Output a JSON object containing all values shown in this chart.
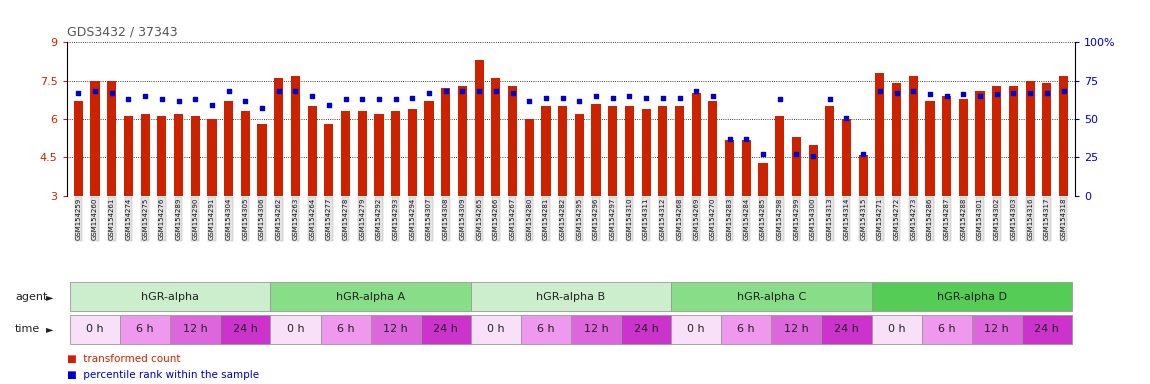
{
  "title": "GDS3432 / 37343",
  "ylim_left": [
    3.0,
    9.0
  ],
  "ylim_right": [
    0,
    100
  ],
  "yticks_left": [
    3.0,
    4.5,
    6.0,
    7.5,
    9.0
  ],
  "ytick_labels_left": [
    "3",
    "4.5",
    "6",
    "7.5",
    "9"
  ],
  "yticks_right": [
    0,
    25,
    50,
    75,
    100
  ],
  "ytick_labels_right": [
    "0",
    "25",
    "50",
    "75",
    "100%"
  ],
  "samples": [
    "GSM154259",
    "GSM154260",
    "GSM154261",
    "GSM154274",
    "GSM154275",
    "GSM154276",
    "GSM154289",
    "GSM154290",
    "GSM154291",
    "GSM154304",
    "GSM154305",
    "GSM154306",
    "GSM154262",
    "GSM154263",
    "GSM154264",
    "GSM154277",
    "GSM154278",
    "GSM154279",
    "GSM154292",
    "GSM154293",
    "GSM154294",
    "GSM154307",
    "GSM154308",
    "GSM154309",
    "GSM154265",
    "GSM154266",
    "GSM154267",
    "GSM154280",
    "GSM154281",
    "GSM154282",
    "GSM154295",
    "GSM154296",
    "GSM154297",
    "GSM154310",
    "GSM154311",
    "GSM154312",
    "GSM154268",
    "GSM154269",
    "GSM154270",
    "GSM154283",
    "GSM154284",
    "GSM154285",
    "GSM154298",
    "GSM154299",
    "GSM154300",
    "GSM154313",
    "GSM154314",
    "GSM154315",
    "GSM154271",
    "GSM154272",
    "GSM154273",
    "GSM154286",
    "GSM154287",
    "GSM154288",
    "GSM154301",
    "GSM154302",
    "GSM154303",
    "GSM154316",
    "GSM154317",
    "GSM154318"
  ],
  "red_values": [
    6.7,
    7.5,
    7.5,
    6.1,
    6.2,
    6.1,
    6.2,
    6.1,
    6.0,
    6.7,
    6.3,
    5.8,
    7.6,
    7.7,
    6.5,
    5.8,
    6.3,
    6.3,
    6.2,
    6.3,
    6.4,
    6.7,
    7.2,
    7.3,
    8.3,
    7.6,
    7.3,
    6.0,
    6.5,
    6.5,
    6.2,
    6.6,
    6.5,
    6.5,
    6.4,
    6.5,
    6.5,
    7.0,
    6.7,
    5.2,
    5.2,
    4.3,
    6.1,
    5.3,
    5.0,
    6.5,
    6.0,
    4.6,
    7.8,
    7.4,
    7.7,
    6.7,
    6.9,
    6.8,
    7.1,
    7.3,
    7.3,
    7.5,
    7.4,
    7.7
  ],
  "blue_pct": [
    67,
    68,
    67,
    63,
    65,
    63,
    62,
    63,
    59,
    68,
    62,
    57,
    68,
    68,
    65,
    59,
    63,
    63,
    63,
    63,
    64,
    67,
    68,
    68,
    68,
    68,
    67,
    62,
    64,
    64,
    62,
    65,
    64,
    65,
    64,
    64,
    64,
    68,
    65,
    37,
    37,
    27,
    63,
    27,
    26,
    63,
    51,
    27,
    68,
    67,
    68,
    66,
    65,
    66,
    65,
    66,
    67,
    67,
    67,
    68
  ],
  "agents": [
    {
      "label": "hGR-alpha",
      "start": 0,
      "end": 12,
      "color": "#cceecc"
    },
    {
      "label": "hGR-alpha A",
      "start": 12,
      "end": 24,
      "color": "#88dd88"
    },
    {
      "label": "hGR-alpha B",
      "start": 24,
      "end": 36,
      "color": "#cceecc"
    },
    {
      "label": "hGR-alpha C",
      "start": 36,
      "end": 48,
      "color": "#88dd88"
    },
    {
      "label": "hGR-alpha D",
      "start": 48,
      "end": 60,
      "color": "#55cc55"
    }
  ],
  "time_slots": [
    {
      "label": "0 h",
      "start": 0,
      "end": 3,
      "color": "#f8e0f8"
    },
    {
      "label": "6 h",
      "start": 3,
      "end": 6,
      "color": "#ee99ee"
    },
    {
      "label": "12 h",
      "start": 6,
      "end": 9,
      "color": "#dd66dd"
    },
    {
      "label": "24 h",
      "start": 9,
      "end": 12,
      "color": "#cc33cc"
    },
    {
      "label": "0 h",
      "start": 12,
      "end": 15,
      "color": "#f8e0f8"
    },
    {
      "label": "6 h",
      "start": 15,
      "end": 18,
      "color": "#ee99ee"
    },
    {
      "label": "12 h",
      "start": 18,
      "end": 21,
      "color": "#dd66dd"
    },
    {
      "label": "24 h",
      "start": 21,
      "end": 24,
      "color": "#cc33cc"
    },
    {
      "label": "0 h",
      "start": 24,
      "end": 27,
      "color": "#f8e0f8"
    },
    {
      "label": "6 h",
      "start": 27,
      "end": 30,
      "color": "#ee99ee"
    },
    {
      "label": "12 h",
      "start": 30,
      "end": 33,
      "color": "#dd66dd"
    },
    {
      "label": "24 h",
      "start": 33,
      "end": 36,
      "color": "#cc33cc"
    },
    {
      "label": "0 h",
      "start": 36,
      "end": 39,
      "color": "#f8e0f8"
    },
    {
      "label": "6 h",
      "start": 39,
      "end": 42,
      "color": "#ee99ee"
    },
    {
      "label": "12 h",
      "start": 42,
      "end": 45,
      "color": "#dd66dd"
    },
    {
      "label": "24 h",
      "start": 45,
      "end": 48,
      "color": "#cc33cc"
    },
    {
      "label": "0 h",
      "start": 48,
      "end": 51,
      "color": "#f8e0f8"
    },
    {
      "label": "6 h",
      "start": 51,
      "end": 54,
      "color": "#ee99ee"
    },
    {
      "label": "12 h",
      "start": 54,
      "end": 57,
      "color": "#dd66dd"
    },
    {
      "label": "24 h",
      "start": 57,
      "end": 60,
      "color": "#cc33cc"
    }
  ],
  "bar_color": "#cc2200",
  "dot_color": "#0000cc",
  "bg_color": "#ffffff",
  "title_color": "#555555",
  "left_tick_color": "#cc2200",
  "right_tick_color": "#0000cc",
  "legend_red": "transformed count",
  "legend_blue": "percentile rank within the sample"
}
